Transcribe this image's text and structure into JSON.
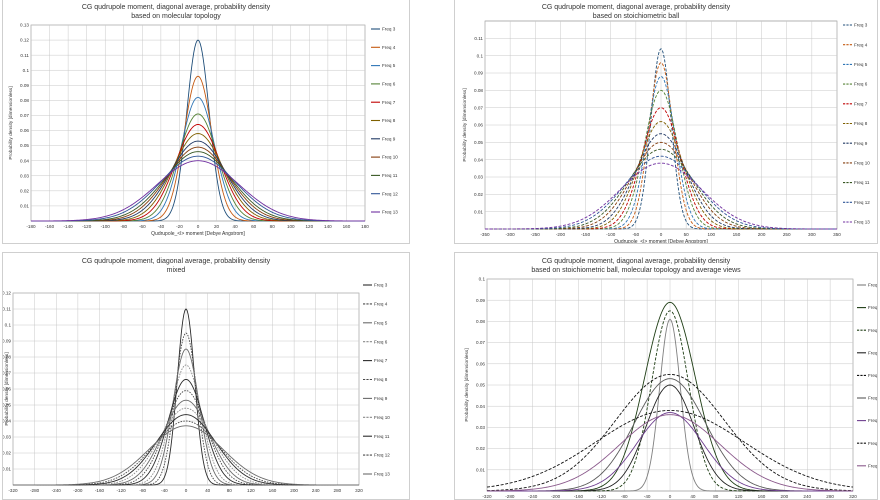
{
  "colors": {
    "background": "#ffffff",
    "grid": "#c8c8c8",
    "axis": "#808080",
    "text": "#333333",
    "freq_colors": [
      "#1f4e79",
      "#c55a11",
      "#2e75b6",
      "#548235",
      "#c00000",
      "#7f6000",
      "#203864",
      "#843c0c",
      "#385723",
      "#2f5597",
      "#7030a0"
    ]
  },
  "chart_data": [
    {
      "type": "line",
      "title": [
        "CG qudrupole moment, diagonal average, probability density",
        "based on molecular topology"
      ],
      "xlabel": "Qudrupole_<l> moment [Debye Angstrom]",
      "ylabel": "Probability density [dimensionless]",
      "xlim": [
        -180,
        180
      ],
      "ylim": [
        0,
        0.13
      ],
      "xticks": [
        "-180",
        "-160",
        "-140",
        "-120",
        "-100",
        "-80",
        "-60",
        "-40",
        "-20",
        "0",
        "20",
        "40",
        "60",
        "80",
        "100",
        "120",
        "140",
        "160",
        "180"
      ],
      "yticks": [
        "0.01",
        "0.02",
        "0.03",
        "0.04",
        "0.05",
        "0.06",
        "0.07",
        "0.08",
        "0.09",
        "0.1",
        "0.11",
        "0.12",
        "0.13"
      ],
      "grid": true,
      "legend_position": "right",
      "line_style": "solid",
      "series": [
        {
          "name": "Freq 3",
          "peak": 0.12,
          "sigma": 12
        },
        {
          "name": "Freq 4",
          "peak": 0.096,
          "sigma": 15
        },
        {
          "name": "Freq 5",
          "peak": 0.082,
          "sigma": 18
        },
        {
          "name": "Freq 6",
          "peak": 0.071,
          "sigma": 21
        },
        {
          "name": "Freq 7",
          "peak": 0.064,
          "sigma": 24
        },
        {
          "name": "Freq 8",
          "peak": 0.058,
          "sigma": 27
        },
        {
          "name": "Freq 9",
          "peak": 0.053,
          "sigma": 30
        },
        {
          "name": "Freq 10",
          "peak": 0.049,
          "sigma": 33
        },
        {
          "name": "Freq 11",
          "peak": 0.046,
          "sigma": 36
        },
        {
          "name": "Freq 12",
          "peak": 0.043,
          "sigma": 40
        },
        {
          "name": "Freq 13",
          "peak": 0.04,
          "sigma": 44
        }
      ]
    },
    {
      "type": "line",
      "title": [
        "CG qudrupole moment, diagonal average, probability density",
        "based on stoichiometric ball"
      ],
      "xlabel": "Qudrupole_<l> moment [Debye Angstrom]",
      "ylabel": "Probability density [dimensionless]",
      "xlim": [
        -350,
        350
      ],
      "ylim": [
        0,
        0.12
      ],
      "xticks": [
        "-350",
        "-300",
        "-250",
        "-200",
        "-150",
        "-100",
        "-50",
        "0",
        "50",
        "100",
        "150",
        "200",
        "250",
        "300",
        "350"
      ],
      "yticks": [
        "0.01",
        "0.02",
        "0.03",
        "0.04",
        "0.05",
        "0.06",
        "0.07",
        "0.08",
        "0.09",
        "0.1",
        "0.11"
      ],
      "grid": true,
      "legend_position": "right",
      "line_style": "dashed",
      "series": [
        {
          "name": "Freq 3",
          "peak": 0.104,
          "sigma": 20
        },
        {
          "name": "Freq 4",
          "peak": 0.096,
          "sigma": 24
        },
        {
          "name": "Freq 5",
          "peak": 0.088,
          "sigma": 28
        },
        {
          "name": "Freq 6",
          "peak": 0.08,
          "sigma": 33
        },
        {
          "name": "Freq 7",
          "peak": 0.07,
          "sigma": 38
        },
        {
          "name": "Freq 8",
          "peak": 0.062,
          "sigma": 44
        },
        {
          "name": "Freq 9",
          "peak": 0.055,
          "sigma": 50
        },
        {
          "name": "Freq 10",
          "peak": 0.05,
          "sigma": 57
        },
        {
          "name": "Freq 11",
          "peak": 0.046,
          "sigma": 64
        },
        {
          "name": "Freq 12",
          "peak": 0.042,
          "sigma": 72
        },
        {
          "name": "Freq 13",
          "peak": 0.038,
          "sigma": 80
        }
      ]
    },
    {
      "type": "line",
      "title": [
        "CG qudrupole moment, diagonal average, probability density",
        "mixed"
      ],
      "xlabel": "",
      "ylabel": "Probability density [dimensionless]",
      "xlim": [
        -320,
        320
      ],
      "ylim": [
        0,
        0.12
      ],
      "xticks": [
        "-320",
        "-280",
        "-240",
        "-200",
        "-160",
        "-120",
        "-80",
        "-40",
        "0",
        "40",
        "80",
        "120",
        "160",
        "200",
        "240",
        "280",
        "320"
      ],
      "yticks": [
        "0.01",
        "0.02",
        "0.03",
        "0.04",
        "0.05",
        "0.06",
        "0.07",
        "0.08",
        "0.09",
        "0.1",
        "0.11",
        "0.12"
      ],
      "grid": true,
      "legend_position": "right",
      "line_style": "mixed",
      "series": [
        {
          "name": "Freq 3",
          "peak": 0.11,
          "sigma": 16
        },
        {
          "name": "Freq 4",
          "peak": 0.095,
          "sigma": 20
        },
        {
          "name": "Freq 5",
          "peak": 0.085,
          "sigma": 24
        },
        {
          "name": "Freq 6",
          "peak": 0.075,
          "sigma": 28
        },
        {
          "name": "Freq 7",
          "peak": 0.066,
          "sigma": 33
        },
        {
          "name": "Freq 8",
          "peak": 0.059,
          "sigma": 38
        },
        {
          "name": "Freq 9",
          "peak": 0.053,
          "sigma": 43
        },
        {
          "name": "Freq 10",
          "peak": 0.048,
          "sigma": 49
        },
        {
          "name": "Freq 11",
          "peak": 0.044,
          "sigma": 55
        },
        {
          "name": "Freq 12",
          "peak": 0.04,
          "sigma": 61
        },
        {
          "name": "Freq 13",
          "peak": 0.037,
          "sigma": 68
        }
      ]
    },
    {
      "type": "line",
      "title": [
        "CG qudrupole moment, diagonal average, probability density",
        "based on stoichiometric ball, molecular topology and average views"
      ],
      "xlabel": "",
      "ylabel": "Probability density [dimensionless]",
      "xlim": [
        -320,
        320
      ],
      "ylim": [
        0,
        0.1
      ],
      "xticks": [
        "-320",
        "-280",
        "-240",
        "-200",
        "-160",
        "-120",
        "-80",
        "-40",
        "0",
        "40",
        "80",
        "120",
        "160",
        "200",
        "240",
        "280",
        "320"
      ],
      "yticks": [
        "0.01",
        "0.02",
        "0.03",
        "0.04",
        "0.05",
        "0.06",
        "0.07",
        "0.08",
        "0.09",
        "0.1"
      ],
      "grid": true,
      "legend_position": "right",
      "line_style": "mixed",
      "series": [
        {
          "name": "Freq 5t",
          "peak": 0.081,
          "sigma": 18,
          "style": "solid",
          "color": "#7f7f7f"
        },
        {
          "name": "Freq 5s",
          "peak": 0.089,
          "sigma": 44,
          "style": "solid",
          "color": "#1e3d14"
        },
        {
          "name": "Freq 5m",
          "peak": 0.085,
          "sigma": 32,
          "style": "dashed",
          "color": "#1e3d14"
        },
        {
          "name": "Freq 9t",
          "peak": 0.05,
          "sigma": 42,
          "style": "solid",
          "color": "#222222"
        },
        {
          "name": "Freq 9s",
          "peak": 0.055,
          "sigma": 95,
          "style": "dashed",
          "color": "#111111"
        },
        {
          "name": "Freq 9m",
          "peak": 0.053,
          "sigma": 62,
          "style": "solid",
          "color": "#5a5a5a"
        },
        {
          "name": "Freq 13t",
          "peak": 0.037,
          "sigma": 58,
          "style": "solid",
          "color": "#6e3f8f"
        },
        {
          "name": "Freq 13s",
          "peak": 0.038,
          "sigma": 130,
          "style": "dashed",
          "color": "#111111"
        },
        {
          "name": "Freq 13m",
          "peak": 0.036,
          "sigma": 88,
          "style": "solid",
          "color": "#8b5a8c"
        }
      ]
    }
  ]
}
